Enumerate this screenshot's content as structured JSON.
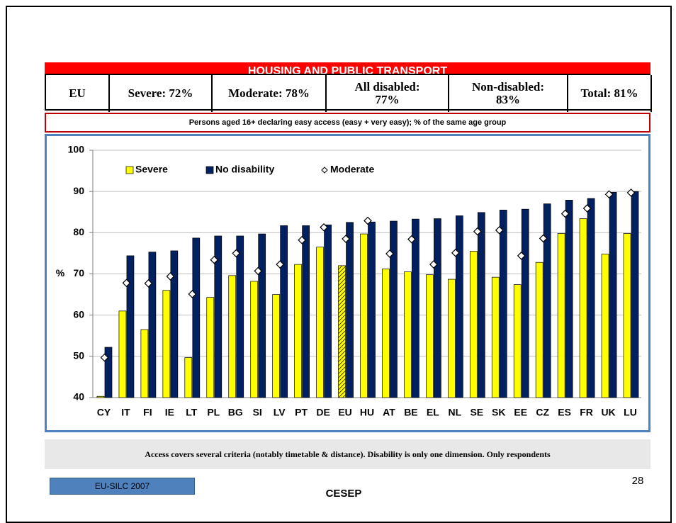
{
  "header": {
    "title": "HOUSING AND PUBLIC TRANSPORT"
  },
  "table": {
    "cells": [
      "EU",
      "Severe: 72%",
      "Moderate: 78%",
      "All disabled: 77%",
      "Non-disabled: 83%",
      "Total: 81%"
    ]
  },
  "subtitle": "Persons aged 16+  declaring easy access (easy + very easy); % of the same age group",
  "chart_data": {
    "type": "bar",
    "y_label": "%",
    "categories": [
      "CY",
      "IT",
      "FI",
      "IE",
      "LT",
      "PL",
      "BG",
      "SI",
      "LV",
      "PT",
      "DE",
      "EU",
      "HU",
      "AT",
      "BE",
      "EL",
      "NL",
      "SE",
      "SK",
      "EE",
      "CZ",
      "ES",
      "FR",
      "UK",
      "LU"
    ],
    "series": [
      {
        "name": "Severe",
        "color": "#ffff00",
        "values": [
          40.3,
          61,
          56.5,
          66,
          49.7,
          64.3,
          69.6,
          68.2,
          65,
          72.3,
          76.5,
          72,
          79.7,
          71.2,
          70.5,
          69.8,
          68.7,
          75.5,
          69.2,
          67.4,
          72.8,
          79.8,
          83.4,
          74.8,
          79.8
        ]
      },
      {
        "name": "No disability",
        "color": "#002060",
        "values": [
          52.2,
          74.4,
          75.3,
          75.6,
          78.7,
          79.2,
          79.2,
          79.7,
          81.7,
          81.7,
          81.9,
          82.5,
          82.6,
          82.8,
          83.3,
          83.4,
          84.1,
          84.9,
          85.5,
          85.7,
          87,
          87.9,
          88.3,
          89.8,
          90
        ]
      },
      {
        "name": "Moderate",
        "color": "#ffffff",
        "marker": "diamond",
        "values": [
          49.7,
          67.8,
          67.7,
          69.4,
          65.1,
          73.4,
          75,
          70.7,
          72.3,
          78.2,
          81.3,
          78.5,
          82.9,
          74.9,
          78.4,
          72.3,
          75.1,
          80.3,
          80.6,
          74.4,
          78.6,
          84.6,
          85.9,
          89.3,
          89.7
        ]
      }
    ],
    "highlight_category": "EU",
    "ylim": [
      40,
      100
    ],
    "yticks": [
      40,
      50,
      60,
      70,
      80,
      90,
      100
    ],
    "grid": true
  },
  "note": "Access covers several criteria (notably timetable & distance). Disability is only one dimension. Only respondents",
  "footer": {
    "source": "EU-SILC 2007",
    "organization": "CESEP",
    "page": "28"
  }
}
